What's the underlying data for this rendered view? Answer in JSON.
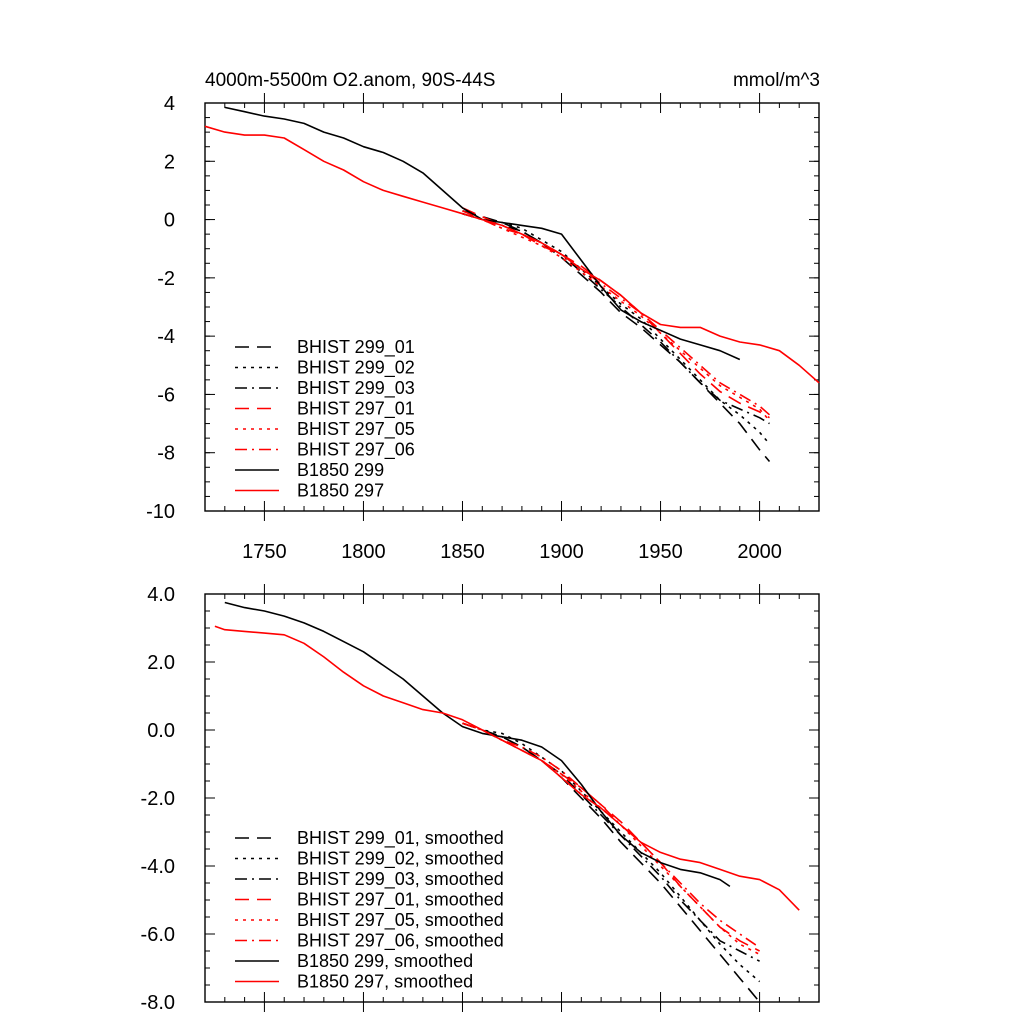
{
  "chart_data": [
    {
      "type": "line",
      "title": "4000m-5500m O2.anom, 90S-44S",
      "units": "mmol/m^3",
      "xlim": [
        1720,
        2030
      ],
      "ylim": [
        -10,
        4
      ],
      "xticks": [
        1750,
        1800,
        1850,
        1900,
        1950,
        2000
      ],
      "xtick_labels": [
        "1750",
        "1800",
        "1850",
        "1900",
        "1950",
        "2000"
      ],
      "yticks": [
        4,
        2,
        0,
        -2,
        -4,
        -6,
        -8,
        -10
      ],
      "ytick_labels": [
        "4",
        "2",
        "0",
        "-2",
        "-4",
        "-6",
        "-8",
        "-10"
      ],
      "legend_position": "bottom-left",
      "series": [
        {
          "name": "BHIST 299_01",
          "color": "#000000",
          "dash": "dash",
          "x": [
            1850,
            1860,
            1870,
            1880,
            1890,
            1900,
            1910,
            1920,
            1930,
            1940,
            1950,
            1960,
            1970,
            1980,
            1990,
            2000,
            2005
          ],
          "y": [
            0.3,
            0.1,
            -0.1,
            -0.4,
            -0.8,
            -1.3,
            -1.9,
            -2.5,
            -3.2,
            -3.7,
            -4.3,
            -4.9,
            -5.6,
            -6.3,
            -7.0,
            -7.9,
            -8.3
          ]
        },
        {
          "name": "BHIST 299_02",
          "color": "#000000",
          "dash": "dot",
          "x": [
            1850,
            1860,
            1870,
            1880,
            1890,
            1900,
            1910,
            1920,
            1930,
            1940,
            1950,
            1960,
            1970,
            1980,
            1990,
            2000,
            2005
          ],
          "y": [
            0.2,
            0.0,
            -0.1,
            -0.3,
            -0.7,
            -1.1,
            -1.7,
            -2.3,
            -2.9,
            -3.4,
            -4.1,
            -4.8,
            -5.5,
            -6.2,
            -6.7,
            -7.3,
            -7.7
          ]
        },
        {
          "name": "BHIST 299_03",
          "color": "#000000",
          "dash": "dashdot",
          "x": [
            1850,
            1860,
            1870,
            1880,
            1890,
            1900,
            1910,
            1920,
            1930,
            1940,
            1950,
            1960,
            1970,
            1980,
            1990,
            2000,
            2005
          ],
          "y": [
            0.2,
            0.0,
            -0.2,
            -0.4,
            -0.8,
            -1.2,
            -1.8,
            -2.4,
            -3.0,
            -3.6,
            -4.2,
            -4.9,
            -5.6,
            -6.2,
            -6.5,
            -6.8,
            -7.0
          ]
        },
        {
          "name": "BHIST 297_01",
          "color": "#ff0000",
          "dash": "dash",
          "x": [
            1850,
            1860,
            1870,
            1880,
            1890,
            1900,
            1910,
            1920,
            1930,
            1940,
            1950,
            1960,
            1970,
            1980,
            1990,
            2000,
            2005
          ],
          "y": [
            0.4,
            0.1,
            -0.2,
            -0.5,
            -0.9,
            -1.2,
            -1.6,
            -2.1,
            -2.6,
            -3.2,
            -3.9,
            -4.6,
            -5.3,
            -5.9,
            -6.3,
            -6.6,
            -6.8
          ]
        },
        {
          "name": "BHIST 297_05",
          "color": "#ff0000",
          "dash": "dot",
          "x": [
            1850,
            1860,
            1870,
            1880,
            1890,
            1900,
            1910,
            1920,
            1930,
            1940,
            1950,
            1960,
            1970,
            1980,
            1990,
            2000,
            2005
          ],
          "y": [
            0.3,
            0.0,
            -0.3,
            -0.6,
            -0.9,
            -1.3,
            -1.8,
            -2.3,
            -2.8,
            -3.3,
            -3.9,
            -4.5,
            -5.1,
            -5.7,
            -6.1,
            -6.5,
            -6.9
          ]
        },
        {
          "name": "BHIST 297_06",
          "color": "#ff0000",
          "dash": "dashdot",
          "x": [
            1850,
            1860,
            1870,
            1880,
            1890,
            1900,
            1910,
            1920,
            1930,
            1940,
            1950,
            1960,
            1970,
            1980,
            1990,
            2000,
            2005
          ],
          "y": [
            0.3,
            0.0,
            -0.3,
            -0.5,
            -0.8,
            -1.2,
            -1.7,
            -2.2,
            -2.7,
            -3.2,
            -3.8,
            -4.4,
            -5.0,
            -5.6,
            -6.0,
            -6.4,
            -6.7
          ]
        },
        {
          "name": "B1850 299",
          "color": "#000000",
          "dash": "solid",
          "x": [
            1730,
            1740,
            1750,
            1760,
            1770,
            1780,
            1790,
            1800,
            1810,
            1820,
            1830,
            1840,
            1850,
            1860,
            1870,
            1880,
            1890,
            1900,
            1910,
            1920,
            1930,
            1940,
            1950,
            1960,
            1970,
            1980,
            1990
          ],
          "y": [
            3.85,
            3.7,
            3.55,
            3.45,
            3.3,
            3.0,
            2.8,
            2.5,
            2.3,
            2.0,
            1.6,
            1.0,
            0.4,
            0.0,
            -0.1,
            -0.2,
            -0.3,
            -0.5,
            -1.4,
            -2.3,
            -3.1,
            -3.5,
            -3.8,
            -4.1,
            -4.3,
            -4.5,
            -4.8
          ]
        },
        {
          "name": "B1850 297",
          "color": "#ff0000",
          "dash": "solid",
          "x": [
            1720,
            1730,
            1740,
            1750,
            1760,
            1770,
            1780,
            1790,
            1800,
            1810,
            1820,
            1830,
            1840,
            1850,
            1860,
            1870,
            1880,
            1890,
            1900,
            1910,
            1920,
            1930,
            1940,
            1950,
            1960,
            1970,
            1980,
            1990,
            2000,
            2010,
            2020,
            2030
          ],
          "y": [
            3.2,
            3.0,
            2.9,
            2.9,
            2.8,
            2.4,
            2.0,
            1.7,
            1.3,
            1.0,
            0.8,
            0.6,
            0.4,
            0.2,
            0.0,
            -0.2,
            -0.5,
            -0.8,
            -1.2,
            -1.7,
            -2.1,
            -2.6,
            -3.2,
            -3.6,
            -3.7,
            -3.7,
            -4.0,
            -4.2,
            -4.3,
            -4.5,
            -5.0,
            -5.6
          ]
        }
      ]
    },
    {
      "type": "line",
      "title": "",
      "units": "",
      "xlim": [
        1720,
        2030
      ],
      "ylim": [
        -8,
        4
      ],
      "xticks": [
        1750,
        1800,
        1850,
        1900,
        1950,
        2000
      ],
      "xtick_labels": [
        "",
        "",
        "",
        "",
        "",
        ""
      ],
      "yticks": [
        4,
        2,
        0,
        -2,
        -4,
        -6,
        -8
      ],
      "ytick_labels": [
        "4.0",
        "2.0",
        "0.0",
        "-2.0",
        "-4.0",
        "-6.0",
        "-8.0"
      ],
      "legend_position": "bottom-left",
      "series": [
        {
          "name": "BHIST 299_01, smoothed",
          "color": "#000000",
          "dash": "dash",
          "x": [
            1850,
            1860,
            1870,
            1880,
            1890,
            1900,
            1910,
            1920,
            1930,
            1940,
            1950,
            1960,
            1970,
            1980,
            1990,
            2000
          ],
          "y": [
            0.2,
            0.0,
            -0.2,
            -0.5,
            -0.9,
            -1.4,
            -2.0,
            -2.6,
            -3.3,
            -3.9,
            -4.5,
            -5.2,
            -5.9,
            -6.6,
            -7.3,
            -8.0
          ]
        },
        {
          "name": "BHIST 299_02, smoothed",
          "color": "#000000",
          "dash": "dot",
          "x": [
            1850,
            1860,
            1870,
            1880,
            1890,
            1900,
            1910,
            1920,
            1930,
            1940,
            1950,
            1960,
            1970,
            1980,
            1990,
            2000
          ],
          "y": [
            0.2,
            0.0,
            -0.1,
            -0.4,
            -0.8,
            -1.2,
            -1.8,
            -2.4,
            -3.0,
            -3.6,
            -4.2,
            -4.9,
            -5.6,
            -6.3,
            -6.9,
            -7.4
          ]
        },
        {
          "name": "BHIST 299_03, smoothed",
          "color": "#000000",
          "dash": "dashdot",
          "x": [
            1850,
            1860,
            1870,
            1880,
            1890,
            1900,
            1910,
            1920,
            1930,
            1940,
            1950,
            1960,
            1970,
            1980,
            1990,
            2000
          ],
          "y": [
            0.2,
            0.0,
            -0.2,
            -0.5,
            -0.9,
            -1.3,
            -1.9,
            -2.5,
            -3.1,
            -3.7,
            -4.3,
            -5.0,
            -5.6,
            -6.2,
            -6.5,
            -6.8
          ]
        },
        {
          "name": "BHIST 297_01, smoothed",
          "color": "#ff0000",
          "dash": "dash",
          "x": [
            1850,
            1860,
            1870,
            1880,
            1890,
            1900,
            1910,
            1920,
            1930,
            1940,
            1950,
            1960,
            1970,
            1980,
            1990,
            2000
          ],
          "y": [
            0.2,
            0.0,
            -0.3,
            -0.6,
            -0.9,
            -1.3,
            -1.7,
            -2.2,
            -2.7,
            -3.3,
            -3.9,
            -4.6,
            -5.2,
            -5.8,
            -6.2,
            -6.5
          ]
        },
        {
          "name": "BHIST 297_05, smoothed",
          "color": "#ff0000",
          "dash": "dot",
          "x": [
            1850,
            1860,
            1870,
            1880,
            1890,
            1900,
            1910,
            1920,
            1930,
            1940,
            1950,
            1960,
            1970,
            1980,
            1990,
            2000
          ],
          "y": [
            0.2,
            0.0,
            -0.3,
            -0.6,
            -0.9,
            -1.3,
            -1.8,
            -2.3,
            -2.8,
            -3.4,
            -4.0,
            -4.6,
            -5.2,
            -5.8,
            -6.3,
            -6.6
          ]
        },
        {
          "name": "BHIST 297_06, smoothed",
          "color": "#ff0000",
          "dash": "dashdot",
          "x": [
            1850,
            1860,
            1870,
            1880,
            1890,
            1900,
            1910,
            1920,
            1930,
            1940,
            1950,
            1960,
            1970,
            1980,
            1990,
            2000
          ],
          "y": [
            0.2,
            0.0,
            -0.3,
            -0.5,
            -0.8,
            -1.2,
            -1.7,
            -2.2,
            -2.8,
            -3.3,
            -3.9,
            -4.5,
            -5.1,
            -5.6,
            -6.0,
            -6.4
          ]
        },
        {
          "name": "B1850 299, smoothed",
          "color": "#000000",
          "dash": "solid",
          "x": [
            1730,
            1740,
            1750,
            1760,
            1770,
            1780,
            1790,
            1800,
            1810,
            1820,
            1830,
            1840,
            1850,
            1860,
            1870,
            1880,
            1890,
            1900,
            1910,
            1920,
            1930,
            1940,
            1950,
            1960,
            1970,
            1980,
            1985
          ],
          "y": [
            3.75,
            3.6,
            3.5,
            3.35,
            3.15,
            2.9,
            2.6,
            2.3,
            1.9,
            1.5,
            1.0,
            0.5,
            0.1,
            -0.1,
            -0.2,
            -0.3,
            -0.5,
            -0.9,
            -1.6,
            -2.4,
            -3.1,
            -3.6,
            -3.9,
            -4.1,
            -4.2,
            -4.4,
            -4.6
          ]
        },
        {
          "name": "B1850 297, smoothed",
          "color": "#ff0000",
          "dash": "solid",
          "x": [
            1725,
            1730,
            1740,
            1750,
            1760,
            1770,
            1780,
            1790,
            1800,
            1810,
            1820,
            1830,
            1840,
            1850,
            1860,
            1870,
            1880,
            1890,
            1900,
            1910,
            1920,
            1930,
            1940,
            1950,
            1960,
            1970,
            1980,
            1990,
            2000,
            2010,
            2020
          ],
          "y": [
            3.05,
            2.95,
            2.9,
            2.85,
            2.8,
            2.55,
            2.15,
            1.7,
            1.3,
            1.0,
            0.8,
            0.6,
            0.5,
            0.3,
            0.0,
            -0.3,
            -0.6,
            -0.9,
            -1.4,
            -1.9,
            -2.3,
            -2.8,
            -3.3,
            -3.6,
            -3.8,
            -3.9,
            -4.1,
            -4.3,
            -4.4,
            -4.7,
            -5.3
          ]
        }
      ]
    }
  ]
}
